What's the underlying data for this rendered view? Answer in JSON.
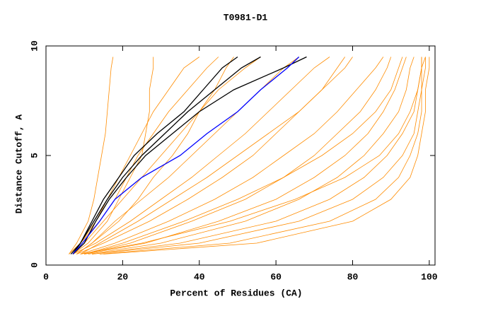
{
  "chart_data": {
    "type": "line",
    "title": "T0981-D1",
    "x_label": "Percent of Residues (CA)",
    "y_label": "Distance Cutoff, A",
    "xlim": [
      0,
      101.5
    ],
    "ylim": [
      0,
      10
    ],
    "xticks": [
      0,
      20,
      40,
      60,
      80,
      100
    ],
    "yticks": [
      0,
      5,
      10
    ],
    "series": [
      {
        "color": "#ff8c00",
        "x": [
          6,
          8,
          11,
          12.5,
          13.5,
          14.5,
          15.5,
          16,
          16.5,
          17,
          17.5
        ],
        "values": [
          0.5,
          1,
          2,
          3,
          4,
          5,
          6,
          7,
          8,
          9,
          9.5
        ]
      },
      {
        "color": "#ff8c00",
        "x": [
          6,
          9,
          13,
          16,
          19,
          22,
          25,
          28,
          32,
          36,
          40
        ],
        "values": [
          0.5,
          1,
          2,
          3,
          4,
          5,
          6,
          7,
          8,
          9,
          9.5
        ]
      },
      {
        "color": "#ff8c00",
        "x": [
          7,
          10,
          15,
          20,
          25,
          30,
          35,
          40,
          45,
          52,
          56
        ],
        "values": [
          0.5,
          1,
          2,
          3,
          4,
          5,
          6,
          7,
          8,
          9,
          9.5
        ]
      },
      {
        "color": "#ff8c00",
        "x": [
          8,
          12,
          18,
          25,
          32,
          38,
          44,
          50,
          56,
          62,
          66
        ],
        "values": [
          0.5,
          1,
          2,
          3,
          4,
          5,
          6,
          7,
          8,
          9,
          9.5
        ]
      },
      {
        "color": "#ff8c00",
        "x": [
          7,
          13,
          22,
          30,
          38,
          45,
          52,
          58,
          64,
          70,
          74
        ],
        "values": [
          0.5,
          1,
          2,
          3,
          4,
          5,
          6,
          7,
          8,
          9,
          9.5
        ]
      },
      {
        "color": "#ff8c00",
        "x": [
          8,
          15,
          27,
          37,
          46,
          54,
          60,
          66,
          72,
          78,
          80
        ],
        "values": [
          0.5,
          1,
          2,
          3,
          4,
          5,
          6,
          7,
          8,
          9,
          9.5
        ]
      },
      {
        "color": "#ff8c00",
        "x": [
          9,
          18,
          32,
          44,
          54,
          62,
          70,
          76,
          81,
          86,
          88
        ],
        "values": [
          0.5,
          1,
          2,
          3,
          4,
          5,
          6,
          7,
          8,
          9,
          9.5
        ]
      },
      {
        "color": "#ff8c00",
        "x": [
          10,
          22,
          38,
          52,
          62,
          70,
          76,
          82,
          86,
          89,
          90
        ],
        "values": [
          0.5,
          1,
          2,
          3,
          4,
          5,
          6,
          7,
          8,
          9,
          9.5
        ]
      },
      {
        "color": "#ff8c00",
        "x": [
          10,
          26,
          45,
          60,
          70,
          78,
          84,
          88,
          91,
          93,
          94
        ],
        "values": [
          0.5,
          1,
          2,
          3,
          4,
          5,
          6,
          7,
          8,
          9,
          9.5
        ]
      },
      {
        "color": "#ff8c00",
        "x": [
          11,
          30,
          52,
          66,
          76,
          83,
          88,
          92,
          94,
          95,
          96
        ],
        "values": [
          0.5,
          1,
          2,
          3,
          4,
          5,
          6,
          7,
          8,
          9,
          9.5
        ]
      },
      {
        "color": "#ff8c00",
        "x": [
          12,
          35,
          60,
          74,
          83,
          89,
          93,
          96,
          97,
          98,
          98
        ],
        "values": [
          0.5,
          1,
          2,
          3,
          4,
          5,
          6,
          7,
          8,
          9,
          9.5
        ]
      },
      {
        "color": "#ff8c00",
        "x": [
          12,
          40,
          66,
          80,
          88,
          93,
          96,
          97,
          98,
          98,
          98
        ],
        "values": [
          0.5,
          1,
          2,
          3,
          4,
          5,
          6,
          7,
          8,
          9,
          9.5
        ]
      },
      {
        "color": "#ff8c00",
        "x": [
          14,
          48,
          74,
          86,
          92,
          95,
          97,
          98,
          98,
          99,
          99
        ],
        "values": [
          0.5,
          1,
          2,
          3,
          4,
          5,
          6,
          7,
          8,
          9,
          9.5
        ]
      },
      {
        "color": "#ff8c00",
        "x": [
          15,
          55,
          80,
          90,
          95,
          97,
          98,
          99,
          99,
          100,
          100
        ],
        "values": [
          0.5,
          1,
          2,
          3,
          4,
          5,
          6,
          7,
          8,
          9,
          9.5
        ]
      },
      {
        "color": "#ff8c00",
        "x": [
          7,
          11,
          16,
          19,
          22,
          25,
          26,
          27,
          27,
          28,
          28
        ],
        "values": [
          0.5,
          1,
          2,
          3,
          4,
          5,
          6,
          7,
          8,
          9,
          9.5
        ]
      },
      {
        "color": "#ff8c00",
        "x": [
          8,
          12,
          19,
          24,
          28,
          33,
          37,
          40,
          44,
          47,
          49
        ],
        "values": [
          0.5,
          1,
          2,
          3,
          4,
          5,
          6,
          7,
          8,
          9,
          9.5
        ]
      },
      {
        "color": "#ff8c00",
        "x": [
          9,
          14,
          24,
          33,
          42,
          50,
          58,
          66,
          72,
          76,
          78
        ],
        "values": [
          0.5,
          1,
          2,
          3,
          4,
          5,
          6,
          7,
          8,
          9,
          9.5
        ]
      },
      {
        "color": "#ff8c00",
        "x": [
          10,
          20,
          36,
          50,
          62,
          72,
          80,
          86,
          90,
          92,
          93
        ],
        "values": [
          0.5,
          1,
          2,
          3,
          4,
          5,
          6,
          7,
          8,
          9,
          9.5
        ]
      },
      {
        "color": "#ff8c00",
        "x": [
          6,
          9,
          14,
          18,
          21,
          24,
          28,
          32,
          37,
          42,
          45
        ],
        "values": [
          0.5,
          1,
          2,
          3,
          4,
          5,
          6,
          7,
          8,
          9,
          9.5
        ]
      },
      {
        "color": "#ff8c00",
        "x": [
          9,
          25,
          48,
          65,
          78,
          87,
          92,
          95,
          97,
          98,
          99
        ],
        "values": [
          0.5,
          1,
          2,
          3,
          4,
          5,
          6,
          7,
          8,
          9,
          9.5
        ]
      },
      {
        "color": "#000000",
        "x": [
          7,
          9,
          12,
          15,
          19,
          23,
          29,
          36,
          41,
          46,
          50
        ],
        "values": [
          0.5,
          1,
          2,
          3,
          4,
          5,
          6,
          7,
          8,
          9,
          9.5
        ]
      },
      {
        "color": "#000000",
        "x": [
          6.5,
          9,
          12.5,
          16,
          20,
          25,
          31,
          37,
          44,
          51,
          56
        ],
        "values": [
          0.5,
          1,
          2,
          3,
          4,
          5,
          6,
          7,
          8,
          9,
          9.5
        ]
      },
      {
        "color": "#000000",
        "x": [
          7,
          10,
          13,
          16.5,
          21,
          26,
          33,
          40,
          49,
          62,
          68
        ],
        "values": [
          0.5,
          1,
          2,
          3,
          4,
          5,
          6,
          7,
          8,
          9,
          9.5
        ]
      },
      {
        "color": "#0000ff",
        "x": [
          7,
          9.5,
          14,
          18,
          25,
          35,
          42,
          50,
          56,
          63,
          66
        ],
        "values": [
          0.5,
          1,
          2,
          3,
          4,
          5,
          6,
          7,
          8,
          9,
          9.5
        ]
      }
    ]
  }
}
